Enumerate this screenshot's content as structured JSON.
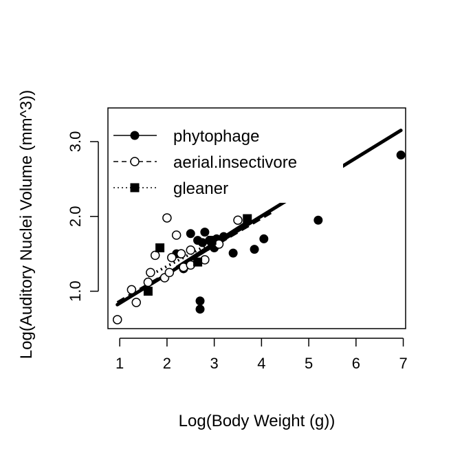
{
  "chart_data": {
    "type": "scatter",
    "title": "",
    "xlabel": "Log(Body Weight (g))",
    "ylabel": "Log(Auditory Nuclei Volume (mm^3))",
    "xlim": [
      0.75,
      7.05
    ],
    "ylim": [
      0.5,
      3.45
    ],
    "xticks": [
      1,
      2,
      3,
      4,
      5,
      6,
      7
    ],
    "xtick_labels": [
      "1",
      "2",
      "3",
      "4",
      "5",
      "6",
      "7"
    ],
    "yticks": [
      1.0,
      2.0,
      3.0
    ],
    "ytick_labels": [
      "1.0",
      "2.0",
      "3.0"
    ],
    "grid": false,
    "legend_position": "top-left",
    "series": [
      {
        "name": "phytophage",
        "marker": "filled-circle",
        "line": "solid",
        "points": [
          [
            2.2,
            1.5
          ],
          [
            2.35,
            1.3
          ],
          [
            2.5,
            1.77
          ],
          [
            2.65,
            1.68
          ],
          [
            2.75,
            1.65
          ],
          [
            2.8,
            1.79
          ],
          [
            2.9,
            1.68
          ],
          [
            3.0,
            1.58
          ],
          [
            3.05,
            1.7
          ],
          [
            3.2,
            1.73
          ],
          [
            3.4,
            1.51
          ],
          [
            3.85,
            1.56
          ],
          [
            4.05,
            1.7
          ],
          [
            2.7,
            0.87
          ],
          [
            2.7,
            0.76
          ],
          [
            5.2,
            1.95
          ],
          [
            6.95,
            2.82
          ]
        ],
        "fit": [
          [
            2.2,
            1.32
          ],
          [
            3.7,
            1.93
          ]
        ]
      },
      {
        "name": "aerial.insectivore",
        "marker": "open-circle",
        "line": "dashed",
        "points": [
          [
            0.95,
            0.62
          ],
          [
            1.25,
            1.02
          ],
          [
            1.35,
            0.85
          ],
          [
            1.6,
            1.12
          ],
          [
            1.65,
            1.25
          ],
          [
            1.75,
            1.48
          ],
          [
            1.95,
            1.18
          ],
          [
            2.0,
            1.98
          ],
          [
            2.05,
            1.25
          ],
          [
            2.1,
            1.45
          ],
          [
            2.2,
            1.75
          ],
          [
            2.3,
            1.5
          ],
          [
            2.35,
            1.32
          ],
          [
            2.5,
            1.55
          ],
          [
            2.5,
            1.35
          ],
          [
            2.8,
            1.42
          ],
          [
            3.1,
            1.63
          ],
          [
            3.5,
            1.95
          ]
        ],
        "fit": [
          [
            0.95,
            0.85
          ],
          [
            4.2,
            2.05
          ]
        ]
      },
      {
        "name": "gleaner",
        "marker": "filled-square",
        "line": "dotted",
        "points": [
          [
            1.6,
            1.0
          ],
          [
            1.85,
            1.58
          ],
          [
            2.65,
            1.39
          ],
          [
            2.95,
            1.68
          ],
          [
            3.7,
            1.97
          ]
        ],
        "fit": [
          [
            1.6,
            1.2
          ],
          [
            3.7,
            1.9
          ]
        ]
      }
    ],
    "overall_fit": {
      "line": "thick-solid",
      "points": [
        [
          0.95,
          0.82
        ],
        [
          6.95,
          3.15
        ]
      ]
    }
  }
}
